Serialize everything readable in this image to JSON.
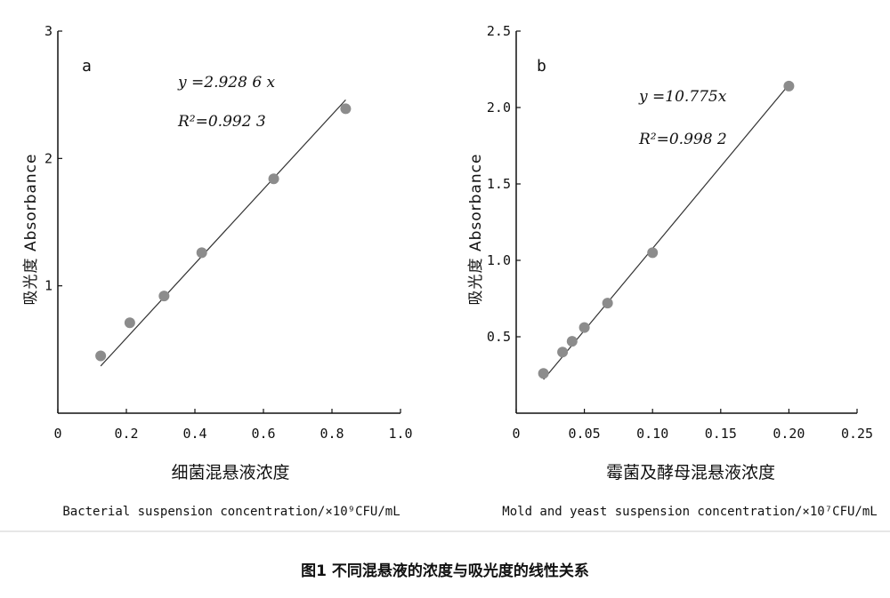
{
  "caption": "图1 不同混悬液的浓度与吸光度的线性关系",
  "chart_data": [
    {
      "type": "scatter",
      "panel": "a",
      "title": "",
      "equation": "y =2.928 6 x",
      "r2": "R²=0.992 3",
      "ylabel": "吸光度 Absorbance",
      "xlabel_cn": "细菌混悬液浓度",
      "xlabel_en": "Bacterial suspension concentration/×10⁹CFU/mL",
      "xlim": [
        0,
        1.0
      ],
      "ylim": [
        0,
        3
      ],
      "xticks": [
        0,
        0.2,
        0.4,
        0.6,
        0.8,
        1.0
      ],
      "xtick_labels": [
        "0",
        "0.2",
        "0.4",
        "0.6",
        "0.8",
        "1.0"
      ],
      "yticks": [
        1,
        2,
        3
      ],
      "ytick_labels": [
        "1",
        "2",
        "3"
      ],
      "grid": false,
      "points": [
        {
          "x": 0.125,
          "y": 0.45
        },
        {
          "x": 0.21,
          "y": 0.71
        },
        {
          "x": 0.31,
          "y": 0.92
        },
        {
          "x": 0.42,
          "y": 1.26
        },
        {
          "x": 0.63,
          "y": 1.84
        },
        {
          "x": 0.84,
          "y": 2.39
        }
      ],
      "fit_line": {
        "x": [
          0.125,
          0.84
        ],
        "y": [
          0.37,
          2.46
        ]
      },
      "colors": {
        "points": "#8c8c8c",
        "line": "#333333"
      }
    },
    {
      "type": "scatter",
      "panel": "b",
      "title": "",
      "equation": "y =10.775x",
      "r2": "R²=0.998 2",
      "ylabel": "吸光度 Absorbance",
      "xlabel_cn": "霉菌及酵母混悬液浓度",
      "xlabel_en": "Mold and yeast suspension concentration/×10⁷CFU/mL",
      "xlim": [
        0,
        0.25
      ],
      "ylim": [
        0,
        2.5
      ],
      "xticks": [
        0,
        0.05,
        0.1,
        0.15,
        0.2,
        0.25
      ],
      "xtick_labels": [
        "0",
        "0.05",
        "0.10",
        "0.15",
        "0.20",
        "0.25"
      ],
      "yticks": [
        0.5,
        1.0,
        1.5,
        2.0,
        2.5
      ],
      "ytick_labels": [
        "0.5",
        "1.0",
        "1.5",
        "2.0",
        "2.5"
      ],
      "grid": false,
      "points": [
        {
          "x": 0.02,
          "y": 0.26
        },
        {
          "x": 0.034,
          "y": 0.4
        },
        {
          "x": 0.041,
          "y": 0.47
        },
        {
          "x": 0.05,
          "y": 0.56
        },
        {
          "x": 0.067,
          "y": 0.72
        },
        {
          "x": 0.1,
          "y": 1.05
        },
        {
          "x": 0.2,
          "y": 2.14
        }
      ],
      "fit_line": {
        "x": [
          0.02,
          0.2
        ],
        "y": [
          0.22,
          2.15
        ]
      },
      "colors": {
        "points": "#8c8c8c",
        "line": "#333333"
      }
    }
  ]
}
